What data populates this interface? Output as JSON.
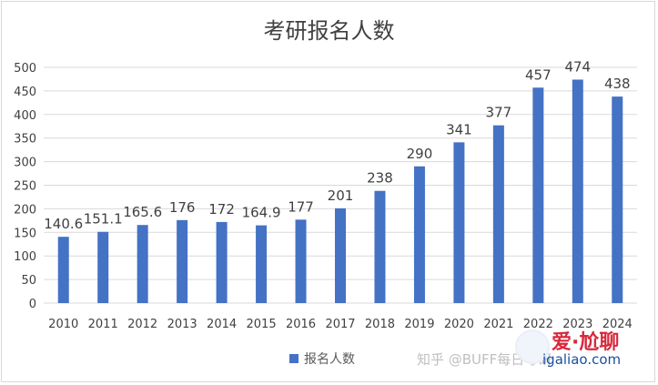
{
  "chart_data": {
    "type": "bar",
    "title": "考研报名人数",
    "categories": [
      "2010",
      "2011",
      "2012",
      "2013",
      "2014",
      "2015",
      "2016",
      "2017",
      "2018",
      "2019",
      "2020",
      "2021",
      "2022",
      "2023",
      "2024"
    ],
    "series": [
      {
        "name": "报名人数",
        "values": [
          140.6,
          151.1,
          165.6,
          176,
          172,
          164.9,
          177,
          201,
          238,
          290,
          341,
          377,
          457,
          474,
          438
        ],
        "labels": [
          "140.6",
          "151.1",
          "165.6",
          "176",
          "172",
          "164.9",
          "177",
          "201",
          "238",
          "290",
          "341",
          "377",
          "457",
          "474",
          "438"
        ]
      }
    ],
    "ylim": [
      0,
      500
    ],
    "yticks": [
      0,
      50,
      100,
      150,
      200,
      250,
      300,
      350,
      400,
      450,
      500
    ],
    "grid": true,
    "legend": "bottom",
    "color": "#4472C4"
  },
  "watermark": {
    "text": "知乎 @BUFF每日考研",
    "brand": "爱·尬聊",
    "url": "igaliao.com"
  }
}
